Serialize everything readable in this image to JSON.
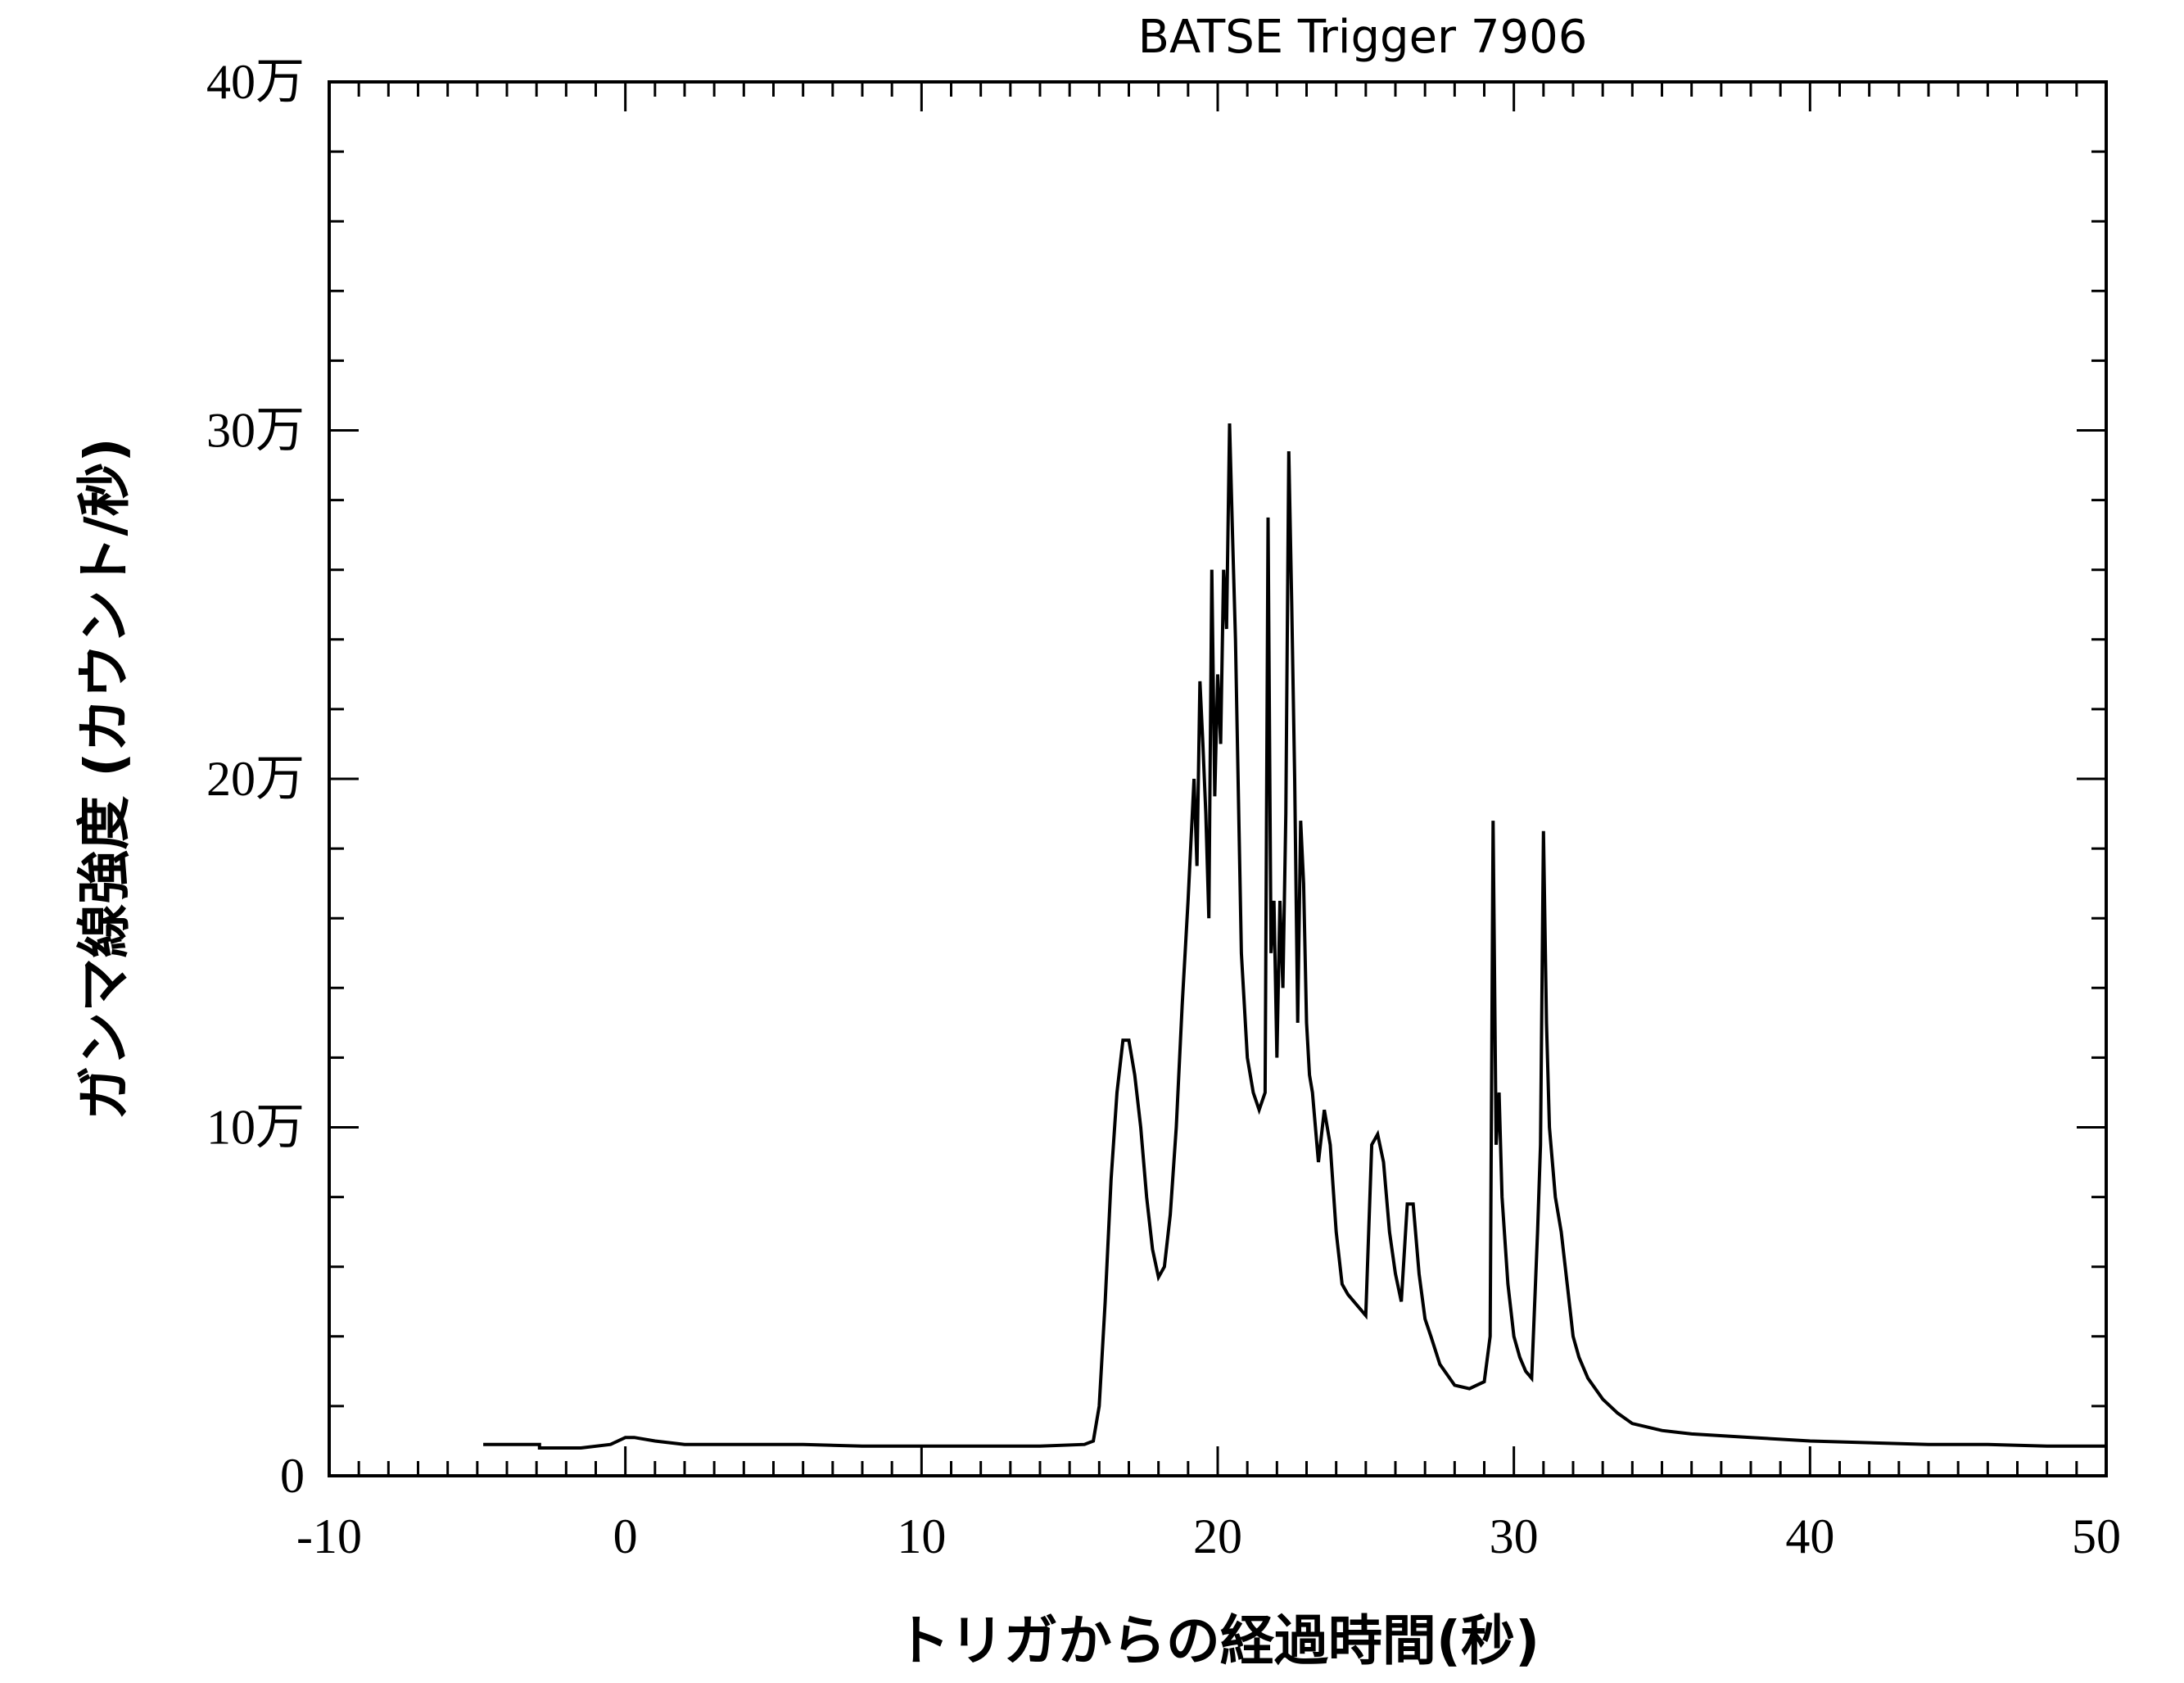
{
  "chart_data": {
    "type": "line",
    "title": "BATSE Trigger 7906",
    "xlabel": "トリガからの経過時間(秒)",
    "ylabel": "ガンマ線強度 (カウント/秒)",
    "xlim": [
      -10,
      50
    ],
    "ylim": [
      0,
      400000
    ],
    "x_ticks": [
      {
        "value": -10,
        "label": "-10"
      },
      {
        "value": 0,
        "label": "0"
      },
      {
        "value": 10,
        "label": "10"
      },
      {
        "value": 20,
        "label": "20"
      },
      {
        "value": 30,
        "label": "30"
      },
      {
        "value": 40,
        "label": "40"
      },
      {
        "value": 50,
        "label": "50"
      }
    ],
    "y_ticks": [
      {
        "value": 0,
        "label": "0"
      },
      {
        "value": 100000,
        "label": "10万"
      },
      {
        "value": 200000,
        "label": "20万"
      },
      {
        "value": 300000,
        "label": "30万"
      },
      {
        "value": 400000,
        "label": "40万"
      }
    ],
    "grid": false,
    "legend": "none",
    "line_color": "#000000",
    "series": [
      {
        "x": [
          -4.8,
          -2.9,
          -2.9,
          -1.5,
          -0.5,
          0.0,
          0.3,
          1.0,
          2.0,
          4.0,
          6.0,
          8.0,
          10.0,
          12.0,
          14.0,
          15.5,
          15.8,
          16.0,
          16.2,
          16.4,
          16.6,
          16.8,
          17.0,
          17.2,
          17.4,
          17.6,
          17.8,
          18.0,
          18.2,
          18.4,
          18.6,
          18.8,
          19.0,
          19.2,
          19.3,
          19.4,
          19.5,
          19.6,
          19.7,
          19.8,
          19.9,
          20.0,
          20.1,
          20.2,
          20.3,
          20.4,
          20.5,
          20.6,
          20.7,
          20.8,
          21.0,
          21.2,
          21.4,
          21.6,
          21.7,
          21.8,
          21.9,
          22.0,
          22.1,
          22.2,
          22.3,
          22.4,
          22.5,
          22.6,
          22.7,
          22.8,
          22.9,
          23.0,
          23.1,
          23.2,
          23.4,
          23.6,
          23.8,
          24.0,
          24.2,
          24.4,
          24.6,
          24.8,
          25.0,
          25.2,
          25.4,
          25.6,
          25.8,
          26.0,
          26.2,
          26.4,
          26.6,
          26.8,
          27.0,
          27.2,
          27.5,
          28.0,
          28.5,
          29.0,
          29.2,
          29.3,
          29.4,
          29.5,
          29.6,
          29.8,
          30.0,
          30.2,
          30.4,
          30.6,
          30.8,
          30.9,
          31.0,
          31.1,
          31.2,
          31.4,
          31.6,
          31.8,
          32.0,
          32.2,
          32.5,
          33.0,
          33.5,
          34.0,
          35.0,
          36.0,
          38.0,
          40.0,
          42.0,
          44.0,
          46.0,
          48.0,
          50.0
        ],
        "y": [
          9000,
          9000,
          8000,
          8000,
          9000,
          11000,
          11000,
          10000,
          9000,
          9000,
          9000,
          8500,
          8500,
          8500,
          8500,
          9000,
          10000,
          20000,
          50000,
          85000,
          110000,
          125000,
          125000,
          115000,
          100000,
          80000,
          65000,
          57000,
          60000,
          75000,
          100000,
          135000,
          165000,
          200000,
          175000,
          228000,
          210000,
          190000,
          160000,
          260000,
          195000,
          230000,
          210000,
          260000,
          243000,
          302000,
          270000,
          240000,
          195000,
          150000,
          120000,
          110000,
          105000,
          110000,
          275000,
          150000,
          165000,
          120000,
          165000,
          140000,
          190000,
          294000,
          250000,
          200000,
          130000,
          188000,
          170000,
          130000,
          115000,
          110000,
          90000,
          105000,
          95000,
          70000,
          55000,
          52000,
          50000,
          48000,
          46000,
          95000,
          98000,
          90000,
          70000,
          58000,
          50000,
          78000,
          78000,
          58000,
          45000,
          40000,
          32000,
          26000,
          25000,
          27000,
          40000,
          188000,
          95000,
          110000,
          80000,
          55000,
          40000,
          34000,
          30000,
          28000,
          70000,
          95000,
          185000,
          130000,
          100000,
          80000,
          70000,
          55000,
          40000,
          34000,
          28000,
          22000,
          18000,
          15000,
          13000,
          12000,
          11000,
          10000,
          9500,
          9000,
          9000,
          8500,
          8500
        ]
      }
    ]
  }
}
